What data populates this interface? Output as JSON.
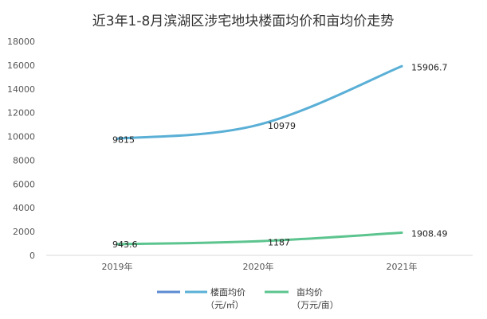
{
  "chart_data": {
    "type": "line",
    "title": "近3年1-8月滨湖区涉宅地块楼面均价和亩均价走势",
    "categories": [
      "2019年",
      "2020年",
      "2021年"
    ],
    "ylim": [
      0,
      18000
    ],
    "ytick_step": 2000,
    "grid": false,
    "legend_position": "bottom",
    "series": [
      {
        "name": "楼面均价",
        "unit": "（元/㎡）",
        "color": "#5AAFD6",
        "values": [
          9815,
          10979,
          15906.7
        ],
        "labels": [
          "9815",
          "10979",
          "15906.7"
        ]
      },
      {
        "name": "亩均价",
        "unit": "（万元/亩）",
        "color": "#5CC48E",
        "values": [
          943.6,
          1187,
          1908.49
        ],
        "labels": [
          "943.6",
          "1187",
          "1908.49"
        ]
      }
    ]
  }
}
